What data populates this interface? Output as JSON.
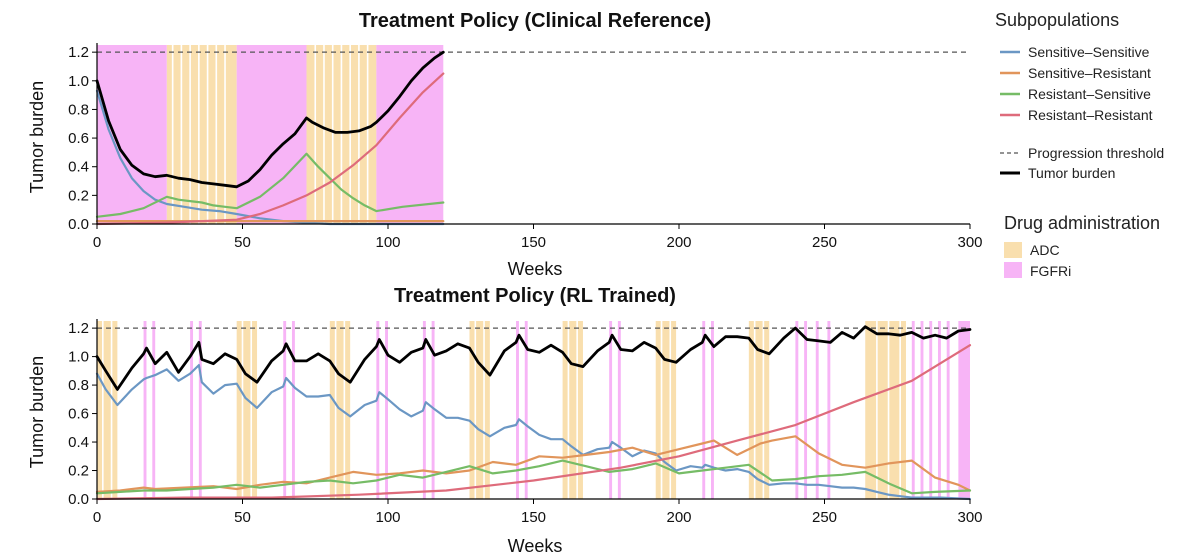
{
  "colors": {
    "adc": "#f9dfae",
    "fgfri": "#f7b4f6",
    "sensitive_sensitive": "#6b97c4",
    "sensitive_resistant": "#e1955b",
    "resistant_sensitive": "#76bc66",
    "resistant_resistant": "#de6b7b",
    "tumor_burden": "#000000",
    "threshold": "#555555"
  },
  "legend": {
    "subpop_title": "Subpopulations",
    "subpopulations": [
      "Sensitive–Sensitive",
      "Sensitive–Resistant",
      "Resistant–Sensitive",
      "Resistant–Resistant"
    ],
    "threshold_label": "Progression threshold",
    "burden_label": "Tumor burden",
    "drug_title": "Drug administration",
    "drugs": [
      "ADC",
      "FGFRi"
    ]
  },
  "chart_data": [
    {
      "type": "line",
      "title": "Treatment Policy (Clinical Reference)",
      "xlabel": "Weeks",
      "ylabel": "Tumor burden",
      "xlim": [
        0,
        300
      ],
      "ylim": [
        0,
        1.25
      ],
      "xticks": [
        "0",
        "50",
        "100",
        "150",
        "200",
        "250",
        "300"
      ],
      "yticks": [
        "0.0",
        "0.2",
        "0.4",
        "0.6",
        "0.8",
        "1.0",
        "1.2"
      ],
      "threshold": 1.2,
      "drug_blocks": [
        {
          "drug": "FGFRi",
          "start": 0,
          "end": 24
        },
        {
          "drug": "ADC",
          "start": 24,
          "end": 48
        },
        {
          "drug": "FGFRi",
          "start": 48,
          "end": 72
        },
        {
          "drug": "ADC",
          "start": 72,
          "end": 96
        },
        {
          "drug": "FGFRi",
          "start": 96,
          "end": 119
        }
      ],
      "adc_gaps": [
        26,
        29,
        32,
        35,
        38,
        41,
        44,
        75,
        78,
        81,
        84,
        87,
        90,
        93
      ],
      "series": [
        {
          "name": "Sensitive–Sensitive",
          "x": [
            0,
            4,
            8,
            12,
            16,
            20,
            24,
            30,
            36,
            42,
            48,
            56,
            64,
            72,
            80,
            96,
            119
          ],
          "y": [
            0.93,
            0.66,
            0.46,
            0.32,
            0.23,
            0.17,
            0.14,
            0.12,
            0.1,
            0.09,
            0.07,
            0.04,
            0.02,
            0.01,
            0.0,
            0.0,
            0.0
          ]
        },
        {
          "name": "Sensitive–Resistant",
          "x": [
            0,
            24,
            48,
            72,
            96,
            119
          ],
          "y": [
            0.02,
            0.02,
            0.02,
            0.02,
            0.02,
            0.02
          ]
        },
        {
          "name": "Resistant–Sensitive",
          "x": [
            0,
            8,
            16,
            24,
            28,
            32,
            36,
            40,
            44,
            48,
            56,
            64,
            72,
            76,
            80,
            84,
            88,
            92,
            96,
            105,
            119
          ],
          "y": [
            0.05,
            0.07,
            0.11,
            0.19,
            0.17,
            0.16,
            0.15,
            0.13,
            0.12,
            0.11,
            0.19,
            0.32,
            0.49,
            0.4,
            0.32,
            0.24,
            0.18,
            0.13,
            0.09,
            0.12,
            0.15
          ]
        },
        {
          "name": "Resistant–Resistant",
          "x": [
            0,
            24,
            48,
            56,
            64,
            72,
            80,
            88,
            96,
            104,
            112,
            119
          ],
          "y": [
            0.0,
            0.01,
            0.03,
            0.07,
            0.13,
            0.2,
            0.29,
            0.41,
            0.55,
            0.74,
            0.92,
            1.05
          ]
        },
        {
          "name": "Tumor burden",
          "x": [
            0,
            4,
            8,
            12,
            16,
            20,
            24,
            28,
            32,
            36,
            40,
            44,
            48,
            52,
            56,
            60,
            64,
            68,
            72,
            74,
            78,
            82,
            86,
            90,
            94,
            96,
            100,
            104,
            108,
            112,
            116,
            119
          ],
          "y": [
            1.0,
            0.72,
            0.52,
            0.41,
            0.35,
            0.33,
            0.34,
            0.32,
            0.31,
            0.29,
            0.28,
            0.27,
            0.26,
            0.3,
            0.38,
            0.48,
            0.56,
            0.63,
            0.74,
            0.71,
            0.67,
            0.64,
            0.64,
            0.65,
            0.68,
            0.71,
            0.79,
            0.89,
            1.0,
            1.09,
            1.16,
            1.2
          ]
        }
      ]
    },
    {
      "type": "line",
      "title": "Treatment Policy (RL Trained)",
      "xlabel": "Weeks",
      "ylabel": "Tumor burden",
      "xlim": [
        0,
        300
      ],
      "ylim": [
        0,
        1.25
      ],
      "xticks": [
        "0",
        "50",
        "100",
        "150",
        "200",
        "250",
        "300"
      ],
      "yticks": [
        "0.0",
        "0.2",
        "0.4",
        "0.6",
        "0.8",
        "1.0",
        "1.2"
      ],
      "threshold": 1.2,
      "drug_blocks": [
        {
          "drug": "ADC",
          "start": 0,
          "end": 7
        },
        {
          "drug": "FGFRi",
          "start": 16,
          "end": 17
        },
        {
          "drug": "FGFRi",
          "start": 19,
          "end": 20
        },
        {
          "drug": "FGFRi",
          "start": 32,
          "end": 33
        },
        {
          "drug": "FGFRi",
          "start": 35,
          "end": 36
        },
        {
          "drug": "ADC",
          "start": 48,
          "end": 55
        },
        {
          "drug": "FGFRi",
          "start": 64,
          "end": 65
        },
        {
          "drug": "FGFRi",
          "start": 67,
          "end": 68
        },
        {
          "drug": "ADC",
          "start": 80,
          "end": 87
        },
        {
          "drug": "FGFRi",
          "start": 96,
          "end": 97
        },
        {
          "drug": "FGFRi",
          "start": 99,
          "end": 100
        },
        {
          "drug": "FGFRi",
          "start": 112,
          "end": 113
        },
        {
          "drug": "FGFRi",
          "start": 115,
          "end": 116
        },
        {
          "drug": "ADC",
          "start": 128,
          "end": 135
        },
        {
          "drug": "FGFRi",
          "start": 144,
          "end": 145
        },
        {
          "drug": "FGFRi",
          "start": 147,
          "end": 148
        },
        {
          "drug": "ADC",
          "start": 160,
          "end": 167
        },
        {
          "drug": "FGFRi",
          "start": 176,
          "end": 177
        },
        {
          "drug": "FGFRi",
          "start": 179,
          "end": 180
        },
        {
          "drug": "ADC",
          "start": 192,
          "end": 199
        },
        {
          "drug": "FGFRi",
          "start": 208,
          "end": 209
        },
        {
          "drug": "FGFRi",
          "start": 211,
          "end": 212
        },
        {
          "drug": "ADC",
          "start": 224,
          "end": 231
        },
        {
          "drug": "FGFRi",
          "start": 240,
          "end": 241
        },
        {
          "drug": "FGFRi",
          "start": 243,
          "end": 244
        },
        {
          "drug": "FGFRi",
          "start": 247,
          "end": 248
        },
        {
          "drug": "FGFRi",
          "start": 251,
          "end": 252
        },
        {
          "drug": "ADC",
          "start": 264,
          "end": 278
        },
        {
          "drug": "FGFRi",
          "start": 280,
          "end": 281
        },
        {
          "drug": "FGFRi",
          "start": 283,
          "end": 284
        },
        {
          "drug": "FGFRi",
          "start": 286,
          "end": 287
        },
        {
          "drug": "FGFRi",
          "start": 289,
          "end": 290
        },
        {
          "drug": "FGFRi",
          "start": 292,
          "end": 293
        },
        {
          "drug": "FGFRi",
          "start": 296,
          "end": 300
        }
      ],
      "adc_gaps": [
        2,
        5,
        50,
        53,
        82,
        85,
        130,
        133,
        162,
        165,
        194,
        197,
        226,
        229,
        268,
        272,
        276
      ],
      "series": [
        {
          "name": "Sensitive–Sensitive",
          "x": [
            0,
            3,
            7,
            12,
            16,
            17,
            20,
            24,
            28,
            32,
            35,
            36,
            40,
            44,
            48,
            51,
            55,
            60,
            64,
            65,
            68,
            72,
            76,
            80,
            83,
            87,
            92,
            96,
            97,
            100,
            104,
            108,
            112,
            113,
            116,
            120,
            124,
            128,
            131,
            135,
            140,
            144,
            145,
            148,
            152,
            156,
            160,
            163,
            167,
            172,
            176,
            177,
            180,
            184,
            188,
            192,
            195,
            199,
            204,
            208,
            209,
            212,
            216,
            220,
            224,
            227,
            231,
            236,
            240,
            244,
            248,
            252,
            256,
            260,
            264,
            268,
            272,
            276,
            280,
            290,
            300
          ],
          "y": [
            0.88,
            0.77,
            0.66,
            0.77,
            0.84,
            0.85,
            0.87,
            0.91,
            0.83,
            0.88,
            0.94,
            0.82,
            0.74,
            0.8,
            0.81,
            0.71,
            0.64,
            0.75,
            0.79,
            0.85,
            0.78,
            0.72,
            0.72,
            0.73,
            0.64,
            0.58,
            0.66,
            0.69,
            0.75,
            0.7,
            0.63,
            0.58,
            0.62,
            0.68,
            0.63,
            0.57,
            0.57,
            0.55,
            0.49,
            0.44,
            0.5,
            0.52,
            0.56,
            0.51,
            0.45,
            0.42,
            0.42,
            0.37,
            0.31,
            0.35,
            0.36,
            0.4,
            0.36,
            0.3,
            0.34,
            0.32,
            0.26,
            0.2,
            0.23,
            0.22,
            0.24,
            0.22,
            0.2,
            0.21,
            0.19,
            0.14,
            0.1,
            0.11,
            0.11,
            0.1,
            0.1,
            0.09,
            0.08,
            0.08,
            0.07,
            0.05,
            0.03,
            0.02,
            0.01,
            0.01,
            0.0
          ]
        },
        {
          "name": "Sensitive–Resistant",
          "x": [
            0,
            8,
            16,
            20,
            30,
            40,
            48,
            56,
            64,
            72,
            80,
            88,
            96,
            104,
            112,
            120,
            128,
            136,
            144,
            152,
            160,
            168,
            176,
            184,
            192,
            200,
            208,
            212,
            220,
            228,
            232,
            240,
            248,
            256,
            264,
            272,
            280,
            288,
            296,
            300
          ],
          "y": [
            0.05,
            0.06,
            0.08,
            0.07,
            0.08,
            0.09,
            0.07,
            0.1,
            0.12,
            0.11,
            0.15,
            0.19,
            0.17,
            0.18,
            0.2,
            0.18,
            0.2,
            0.26,
            0.24,
            0.3,
            0.29,
            0.31,
            0.33,
            0.36,
            0.31,
            0.35,
            0.39,
            0.41,
            0.31,
            0.39,
            0.41,
            0.44,
            0.32,
            0.24,
            0.22,
            0.25,
            0.27,
            0.15,
            0.1,
            0.06
          ]
        },
        {
          "name": "Resistant–Sensitive",
          "x": [
            0,
            8,
            16,
            24,
            32,
            40,
            48,
            56,
            64,
            72,
            80,
            88,
            96,
            104,
            112,
            120,
            128,
            136,
            144,
            152,
            160,
            168,
            176,
            184,
            192,
            200,
            208,
            216,
            224,
            232,
            240,
            248,
            256,
            264,
            272,
            280,
            288,
            300
          ],
          "y": [
            0.04,
            0.05,
            0.06,
            0.06,
            0.07,
            0.08,
            0.1,
            0.08,
            0.1,
            0.12,
            0.13,
            0.11,
            0.13,
            0.17,
            0.15,
            0.19,
            0.23,
            0.18,
            0.2,
            0.23,
            0.27,
            0.23,
            0.19,
            0.21,
            0.25,
            0.18,
            0.2,
            0.22,
            0.24,
            0.13,
            0.14,
            0.16,
            0.17,
            0.19,
            0.11,
            0.04,
            0.05,
            0.06
          ]
        },
        {
          "name": "Resistant–Resistant",
          "x": [
            0,
            30,
            60,
            90,
            120,
            150,
            180,
            200,
            220,
            240,
            260,
            280,
            300
          ],
          "y": [
            0.0,
            0.01,
            0.01,
            0.03,
            0.06,
            0.13,
            0.22,
            0.3,
            0.41,
            0.52,
            0.68,
            0.83,
            1.08
          ]
        },
        {
          "name": "Tumor burden",
          "x": [
            0,
            3,
            7,
            12,
            16,
            17,
            20,
            24,
            28,
            32,
            35,
            36,
            40,
            44,
            48,
            51,
            55,
            60,
            64,
            65,
            68,
            72,
            76,
            80,
            83,
            87,
            92,
            96,
            97,
            100,
            104,
            108,
            112,
            113,
            116,
            120,
            124,
            128,
            131,
            135,
            140,
            144,
            145,
            148,
            152,
            156,
            160,
            163,
            167,
            172,
            176,
            177,
            180,
            184,
            188,
            192,
            195,
            199,
            204,
            208,
            209,
            212,
            216,
            220,
            224,
            227,
            231,
            236,
            240,
            244,
            248,
            252,
            256,
            260,
            264,
            268,
            272,
            276,
            280,
            284,
            288,
            292,
            296,
            300
          ],
          "y": [
            1.0,
            0.9,
            0.77,
            0.92,
            1.02,
            1.06,
            0.95,
            1.03,
            0.89,
            1.0,
            1.1,
            0.98,
            0.95,
            1.02,
            0.98,
            0.88,
            0.82,
            0.97,
            1.04,
            1.09,
            0.97,
            0.97,
            1.02,
            0.97,
            0.88,
            0.82,
            0.98,
            1.07,
            1.12,
            1.01,
            0.96,
            1.03,
            1.06,
            1.12,
            1.01,
            1.04,
            1.09,
            1.06,
            0.96,
            0.87,
            1.04,
            1.1,
            1.15,
            1.05,
            1.03,
            1.08,
            1.03,
            0.95,
            0.93,
            1.04,
            1.1,
            1.15,
            1.05,
            1.04,
            1.1,
            1.06,
            0.98,
            0.96,
            1.05,
            1.1,
            1.15,
            1.07,
            1.14,
            1.14,
            1.13,
            1.05,
            1.02,
            1.13,
            1.2,
            1.12,
            1.11,
            1.1,
            1.17,
            1.13,
            1.21,
            1.16,
            1.16,
            1.15,
            1.17,
            1.13,
            1.15,
            1.13,
            1.18,
            1.19
          ]
        }
      ]
    }
  ]
}
